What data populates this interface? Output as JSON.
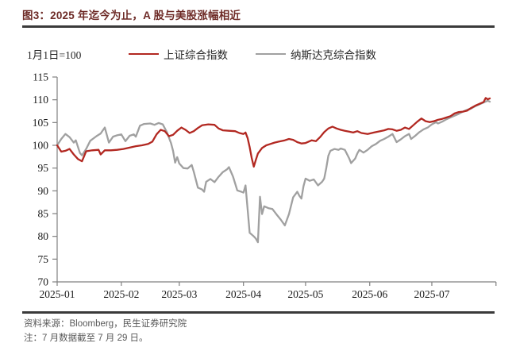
{
  "title": "图3：2025 年迄今为止，A 股与美股涨幅相近",
  "legend": {
    "baseline_label": "1月1日=100",
    "series1_label": "上证综合指数",
    "series2_label": "纳斯达克综合指数"
  },
  "footer": {
    "source": "资料来源：Bloomberg，民生证券研究院",
    "note": "注：7 月数据截至 7 月 29 日。"
  },
  "colors": {
    "title_text": "#6e2b27",
    "rule": "#3a3a3a",
    "sse_line": "#b22821",
    "nasdaq_line": "#a0a0a0",
    "axis": "#808080",
    "footer_text": "#595959"
  },
  "chart_data": {
    "type": "line",
    "note_baseline": "1月1日=100",
    "ylim": [
      70,
      115
    ],
    "yticks": [
      70,
      75,
      80,
      85,
      90,
      95,
      100,
      105,
      110,
      115
    ],
    "x_axis": {
      "labels": [
        "2025-01",
        "2025-02",
        "2025-03",
        "2025-04",
        "2025-05",
        "2025-06",
        "2025-07"
      ],
      "label_days": [
        0,
        31,
        59,
        90,
        120,
        151,
        181
      ],
      "tick_days": [
        0,
        31,
        59,
        90,
        120,
        151,
        181,
        212
      ],
      "axis_span_days": [
        0,
        212
      ]
    },
    "legend_position": "top",
    "grid": false,
    "series": [
      {
        "name": "上证综合指数",
        "color": "#b22821",
        "points": [
          [
            0,
            100
          ],
          [
            2,
            98.6
          ],
          [
            4,
            98.8
          ],
          [
            6,
            99.2
          ],
          [
            8,
            98.0
          ],
          [
            10,
            97.0
          ],
          [
            12,
            96.5
          ],
          [
            14,
            98.7
          ],
          [
            17,
            98.9
          ],
          [
            20,
            99.0
          ],
          [
            21,
            98.0
          ],
          [
            23,
            98.9
          ],
          [
            26,
            98.9
          ],
          [
            29,
            99.0
          ],
          [
            32,
            99.2
          ],
          [
            35,
            99.5
          ],
          [
            38,
            99.8
          ],
          [
            41,
            100.0
          ],
          [
            44,
            100.3
          ],
          [
            46,
            100.8
          ],
          [
            48,
            102.4
          ],
          [
            50,
            103.4
          ],
          [
            52,
            103.1
          ],
          [
            54,
            102.0
          ],
          [
            56,
            102.3
          ],
          [
            58,
            103.2
          ],
          [
            60,
            103.9
          ],
          [
            62,
            103.4
          ],
          [
            64,
            102.7
          ],
          [
            66,
            103.1
          ],
          [
            68,
            103.8
          ],
          [
            70,
            104.4
          ],
          [
            73,
            104.6
          ],
          [
            76,
            104.5
          ],
          [
            78,
            103.7
          ],
          [
            80,
            103.3
          ],
          [
            83,
            103.2
          ],
          [
            86,
            103.1
          ],
          [
            88,
            102.7
          ],
          [
            90,
            102.5
          ],
          [
            91,
            102.8
          ],
          [
            92,
            101.6
          ],
          [
            93,
            99.6
          ],
          [
            94,
            97.2
          ],
          [
            95,
            95.3
          ],
          [
            96,
            96.8
          ],
          [
            97,
            98.2
          ],
          [
            99,
            99.4
          ],
          [
            101,
            100.0
          ],
          [
            103,
            100.3
          ],
          [
            105,
            100.6
          ],
          [
            107,
            100.8
          ],
          [
            110,
            101.1
          ],
          [
            112,
            101.4
          ],
          [
            114,
            101.2
          ],
          [
            116,
            100.7
          ],
          [
            118,
            100.4
          ],
          [
            120,
            100.5
          ],
          [
            123,
            101.1
          ],
          [
            125,
            100.9
          ],
          [
            127,
            101.8
          ],
          [
            129,
            102.9
          ],
          [
            131,
            103.7
          ],
          [
            133,
            104.1
          ],
          [
            135,
            103.7
          ],
          [
            137,
            103.4
          ],
          [
            139,
            103.2
          ],
          [
            141,
            103.0
          ],
          [
            143,
            102.8
          ],
          [
            145,
            103.1
          ],
          [
            147,
            102.7
          ],
          [
            150,
            102.5
          ],
          [
            153,
            102.8
          ],
          [
            156,
            103.1
          ],
          [
            158,
            103.3
          ],
          [
            160,
            103.6
          ],
          [
            162,
            103.5
          ],
          [
            164,
            103.2
          ],
          [
            166,
            103.4
          ],
          [
            168,
            103.9
          ],
          [
            170,
            103.6
          ],
          [
            172,
            104.4
          ],
          [
            174,
            105.2
          ],
          [
            176,
            105.9
          ],
          [
            178,
            105.3
          ],
          [
            180,
            105.1
          ],
          [
            182,
            105.3
          ],
          [
            184,
            105.6
          ],
          [
            186,
            105.8
          ],
          [
            188,
            106.1
          ],
          [
            190,
            106.4
          ],
          [
            192,
            107.0
          ],
          [
            194,
            107.3
          ],
          [
            196,
            107.4
          ],
          [
            198,
            107.6
          ],
          [
            200,
            108.2
          ],
          [
            202,
            108.7
          ],
          [
            204,
            109.1
          ],
          [
            206,
            109.5
          ],
          [
            207,
            110.4
          ],
          [
            208,
            110.1
          ],
          [
            209,
            110.3
          ]
        ]
      },
      {
        "name": "纳斯达克综合指数",
        "color": "#a0a0a0",
        "points": [
          [
            0,
            100
          ],
          [
            2,
            101.4
          ],
          [
            4,
            102.5
          ],
          [
            6,
            101.8
          ],
          [
            8,
            100.6
          ],
          [
            9,
            101.1
          ],
          [
            11,
            98.3
          ],
          [
            12,
            97.8
          ],
          [
            14,
            99.2
          ],
          [
            16,
            101.0
          ],
          [
            19,
            102.0
          ],
          [
            21,
            102.6
          ],
          [
            23,
            103.9
          ],
          [
            25,
            100.6
          ],
          [
            27,
            101.9
          ],
          [
            29,
            102.2
          ],
          [
            31,
            102.4
          ],
          [
            33,
            100.9
          ],
          [
            35,
            102.1
          ],
          [
            37,
            102.4
          ],
          [
            38,
            101.9
          ],
          [
            40,
            104.3
          ],
          [
            42,
            104.7
          ],
          [
            45,
            104.8
          ],
          [
            47,
            104.5
          ],
          [
            49,
            104.9
          ],
          [
            51,
            104.6
          ],
          [
            53,
            102.9
          ],
          [
            55,
            100.5
          ],
          [
            56,
            98.8
          ],
          [
            57,
            96.2
          ],
          [
            58,
            97.4
          ],
          [
            59,
            96.0
          ],
          [
            61,
            95.0
          ],
          [
            63,
            94.9
          ],
          [
            65,
            95.7
          ],
          [
            66,
            94.2
          ],
          [
            68,
            90.7
          ],
          [
            70,
            90.3
          ],
          [
            71,
            89.8
          ],
          [
            72,
            92.0
          ],
          [
            74,
            92.6
          ],
          [
            76,
            91.9
          ],
          [
            78,
            93.1
          ],
          [
            80,
            94.1
          ],
          [
            82,
            94.7
          ],
          [
            83,
            95.2
          ],
          [
            85,
            93.1
          ],
          [
            87,
            90.1
          ],
          [
            89,
            89.8
          ],
          [
            90,
            89.6
          ],
          [
            91,
            91.2
          ],
          [
            92,
            86.0
          ],
          [
            93,
            80.8
          ],
          [
            95,
            80.0
          ],
          [
            96,
            79.5
          ],
          [
            97,
            78.7
          ],
          [
            98,
            88.7
          ],
          [
            99,
            84.9
          ],
          [
            100,
            86.6
          ],
          [
            102,
            86.2
          ],
          [
            104,
            86.0
          ],
          [
            106,
            84.8
          ],
          [
            108,
            83.7
          ],
          [
            110,
            82.4
          ],
          [
            112,
            84.9
          ],
          [
            114,
            88.6
          ],
          [
            116,
            89.8
          ],
          [
            117,
            88.9
          ],
          [
            118,
            88.3
          ],
          [
            119,
            91.0
          ],
          [
            120,
            92.7
          ],
          [
            122,
            92.2
          ],
          [
            124,
            92.5
          ],
          [
            126,
            91.2
          ],
          [
            128,
            92.0
          ],
          [
            129,
            92.7
          ],
          [
            130,
            95.0
          ],
          [
            131,
            97.7
          ],
          [
            132,
            98.8
          ],
          [
            134,
            99.2
          ],
          [
            136,
            99.0
          ],
          [
            137,
            99.3
          ],
          [
            139,
            99.0
          ],
          [
            141,
            97.2
          ],
          [
            142,
            96.1
          ],
          [
            144,
            97.1
          ],
          [
            145,
            98.2
          ],
          [
            146,
            99.0
          ],
          [
            148,
            98.4
          ],
          [
            150,
            99.0
          ],
          [
            152,
            99.8
          ],
          [
            154,
            100.3
          ],
          [
            156,
            101.0
          ],
          [
            158,
            101.4
          ],
          [
            160,
            101.9
          ],
          [
            162,
            102.5
          ],
          [
            163,
            101.6
          ],
          [
            164,
            100.7
          ],
          [
            166,
            101.3
          ],
          [
            168,
            102.0
          ],
          [
            170,
            102.5
          ],
          [
            171,
            101.4
          ],
          [
            173,
            102.1
          ],
          [
            175,
            102.9
          ],
          [
            177,
            103.5
          ],
          [
            179,
            103.9
          ],
          [
            181,
            104.6
          ],
          [
            183,
            105.1
          ],
          [
            184,
            104.8
          ],
          [
            186,
            105.2
          ],
          [
            188,
            105.7
          ],
          [
            190,
            106.1
          ],
          [
            192,
            106.5
          ],
          [
            194,
            106.9
          ],
          [
            196,
            107.4
          ],
          [
            198,
            107.8
          ],
          [
            200,
            108.1
          ],
          [
            202,
            108.6
          ],
          [
            204,
            109.0
          ],
          [
            206,
            109.4
          ],
          [
            208,
            109.8
          ],
          [
            209,
            109.6
          ]
        ]
      }
    ]
  }
}
